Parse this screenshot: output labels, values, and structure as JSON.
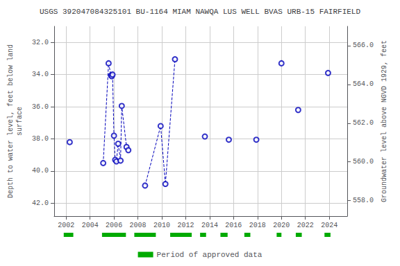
{
  "chart_data": {
    "type": "scatter",
    "title": "USGS 392047084325101 BU-1164 MIAM NAWQA LUS WELL BVAS URB-15 FAIRFIELD",
    "ylabel": "Depth to water level, feet below land\nsurface",
    "y2label": "Groundwater level above NGVD 1929, feet",
    "x": [
      2002.3,
      2005.1,
      2005.55,
      2005.75,
      2005.82,
      2005.88,
      2006.0,
      2006.1,
      2006.2,
      2006.35,
      2006.55,
      2006.65,
      2007.05,
      2007.2,
      2008.6,
      2009.9,
      2010.3,
      2011.1,
      2013.6,
      2015.6,
      2017.9,
      2020.0,
      2021.4,
      2023.9
    ],
    "xlim": [
      2001.0,
      2025.5
    ],
    "xticks": [
      2002,
      2004,
      2006,
      2008,
      2010,
      2012,
      2014,
      2016,
      2018,
      2020,
      2022,
      2024
    ],
    "ylim": [
      42.8,
      31.0
    ],
    "yticks": [
      {
        "value": 32.0,
        "label": "32.0"
      },
      {
        "value": 34.0,
        "label": "34.0"
      },
      {
        "value": 36.0,
        "label": "36.0"
      },
      {
        "value": 38.0,
        "label": "38.0"
      },
      {
        "value": 40.0,
        "label": "40.0"
      },
      {
        "value": 42.0,
        "label": "42.0"
      }
    ],
    "y2lim": [
      557.2,
      567.0
    ],
    "y2ticks": [
      {
        "value": 558.0,
        "label": "558.0"
      },
      {
        "value": 560.0,
        "label": "560.0"
      },
      {
        "value": 562.0,
        "label": "562.0"
      },
      {
        "value": 564.0,
        "label": "564.0"
      },
      {
        "value": 566.0,
        "label": "566.0"
      }
    ],
    "grid": true,
    "legend": "bottom",
    "series": [
      {
        "type": "scatter",
        "marker": "open circle",
        "color": "#0000bb",
        "values": [
          38.2,
          39.5,
          33.3,
          34.05,
          34.1,
          34.0,
          37.8,
          39.3,
          39.4,
          38.3,
          39.35,
          35.95,
          38.5,
          38.7,
          40.9,
          37.2,
          40.8,
          33.05,
          37.85,
          38.05,
          38.05,
          33.3,
          36.2,
          33.9
        ]
      },
      {
        "type": "line",
        "line_style": "dashed",
        "color": "#0000bb",
        "values": [
          null,
          39.5,
          33.3,
          34.05,
          34.1,
          34.0,
          37.8,
          39.3,
          39.4,
          38.3,
          39.35,
          35.95,
          38.5,
          38.7,
          null,
          null,
          null,
          null,
          null,
          null,
          null,
          null,
          null,
          null
        ]
      },
      {
        "type": "line",
        "line_style": "dashed",
        "color": "#0000bb",
        "values": [
          null,
          null,
          null,
          null,
          null,
          null,
          null,
          null,
          null,
          null,
          null,
          null,
          null,
          null,
          40.9,
          37.2,
          40.8,
          33.05,
          null,
          null,
          null,
          null,
          null,
          null
        ]
      },
      {
        "type": "span",
        "name": "Period of approved data",
        "color": "#00aa00",
        "values": [
          [
            2001.8,
            2002.6
          ],
          [
            2005.0,
            2007.0
          ],
          [
            2007.7,
            2009.5
          ],
          [
            2010.7,
            2012.5
          ],
          [
            2013.2,
            2013.7
          ],
          [
            2014.9,
            2015.5
          ],
          [
            2016.9,
            2017.4
          ],
          [
            2019.6,
            2020.0
          ],
          [
            2021.2,
            2021.7
          ],
          [
            2023.6,
            2024.1
          ]
        ]
      }
    ]
  }
}
